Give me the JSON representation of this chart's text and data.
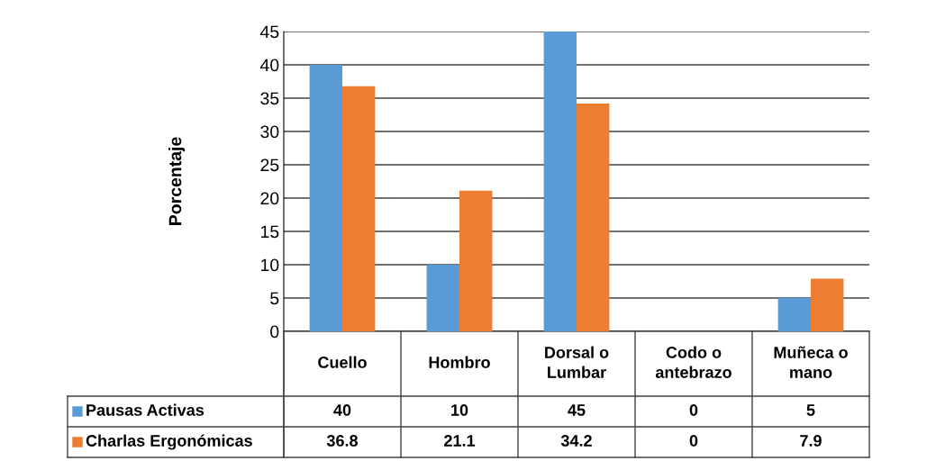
{
  "chart_data": {
    "type": "bar",
    "ylabel": "Porcentaje",
    "categories": [
      "Cuello",
      "Hombro",
      "Dorsal o\nLumbar",
      "Codo o\nantebrazo",
      "Muñeca o\nmano"
    ],
    "series": [
      {
        "name": "Pausas Activas",
        "color": "#5b9bd5",
        "values": [
          40,
          10,
          45,
          0,
          5
        ]
      },
      {
        "name": "Charlas Ergonómicas",
        "color": "#ed7d31",
        "values": [
          36.8,
          21.1,
          34.2,
          0,
          7.9
        ]
      }
    ],
    "ylim": [
      0,
      45
    ],
    "yticks": [
      0,
      5,
      10,
      15,
      20,
      25,
      30,
      35,
      40,
      45
    ],
    "grid": "y",
    "data_labels": true,
    "legend": "bottom"
  }
}
